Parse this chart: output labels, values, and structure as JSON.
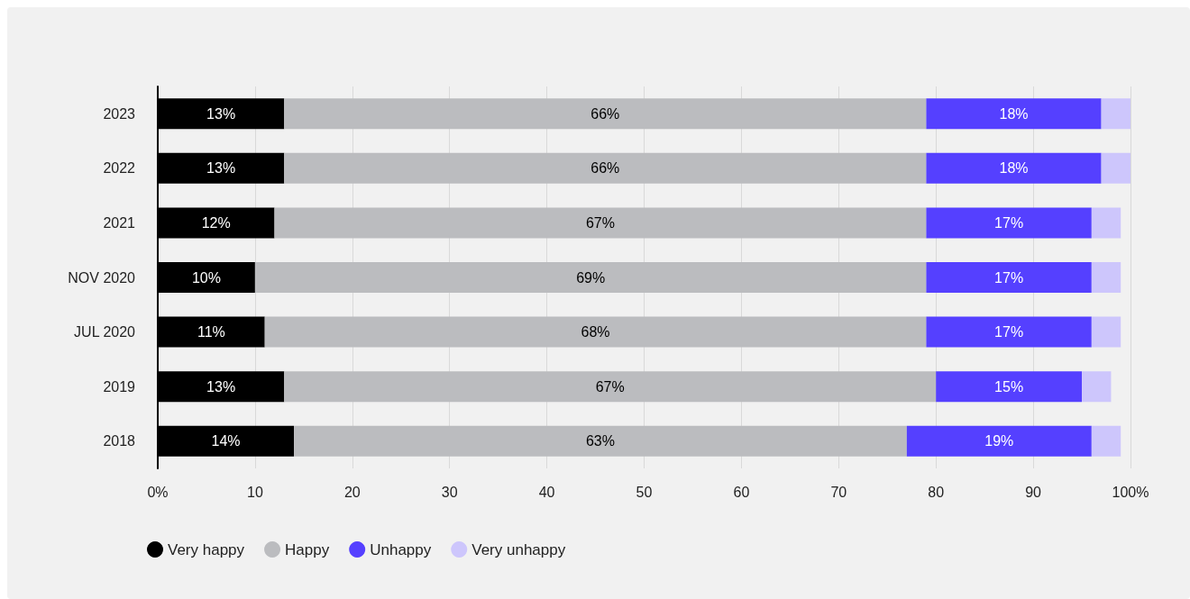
{
  "chart_data": {
    "type": "bar",
    "orientation": "horizontal",
    "stacked": true,
    "categories": [
      "2023",
      "2022",
      "2021",
      "NOV 2020",
      "JUL 2020",
      "2019",
      "2018"
    ],
    "series": [
      {
        "name": "Very happy",
        "color": "#000000",
        "values": [
          13,
          13,
          12,
          10,
          11,
          13,
          14
        ],
        "value_labels": [
          "13%",
          "13%",
          "12%",
          "10%",
          "11%",
          "13%",
          "14%"
        ]
      },
      {
        "name": "Happy",
        "color": "#bbbcbf",
        "values": [
          66,
          66,
          67,
          69,
          68,
          67,
          63
        ],
        "value_labels": [
          "66%",
          "66%",
          "67%",
          "69%",
          "68%",
          "67%",
          "63%"
        ]
      },
      {
        "name": "Unhappy",
        "color": "#5540ff",
        "values": [
          18,
          18,
          17,
          17,
          17,
          15,
          19
        ],
        "value_labels": [
          "18%",
          "18%",
          "17%",
          "17%",
          "17%",
          "15%",
          "19%"
        ]
      },
      {
        "name": "Very unhappy",
        "color": "#cdc6fc",
        "values": [
          3,
          3,
          3,
          3,
          3,
          3,
          3
        ]
      }
    ],
    "xlim": [
      0,
      100
    ],
    "xticks": [
      {
        "value": 0,
        "label": "0%"
      },
      10,
      20,
      30,
      40,
      50,
      60,
      70,
      80,
      90,
      {
        "value": 100,
        "label": "100%"
      }
    ],
    "grid": "x",
    "legend": "bottom left"
  }
}
